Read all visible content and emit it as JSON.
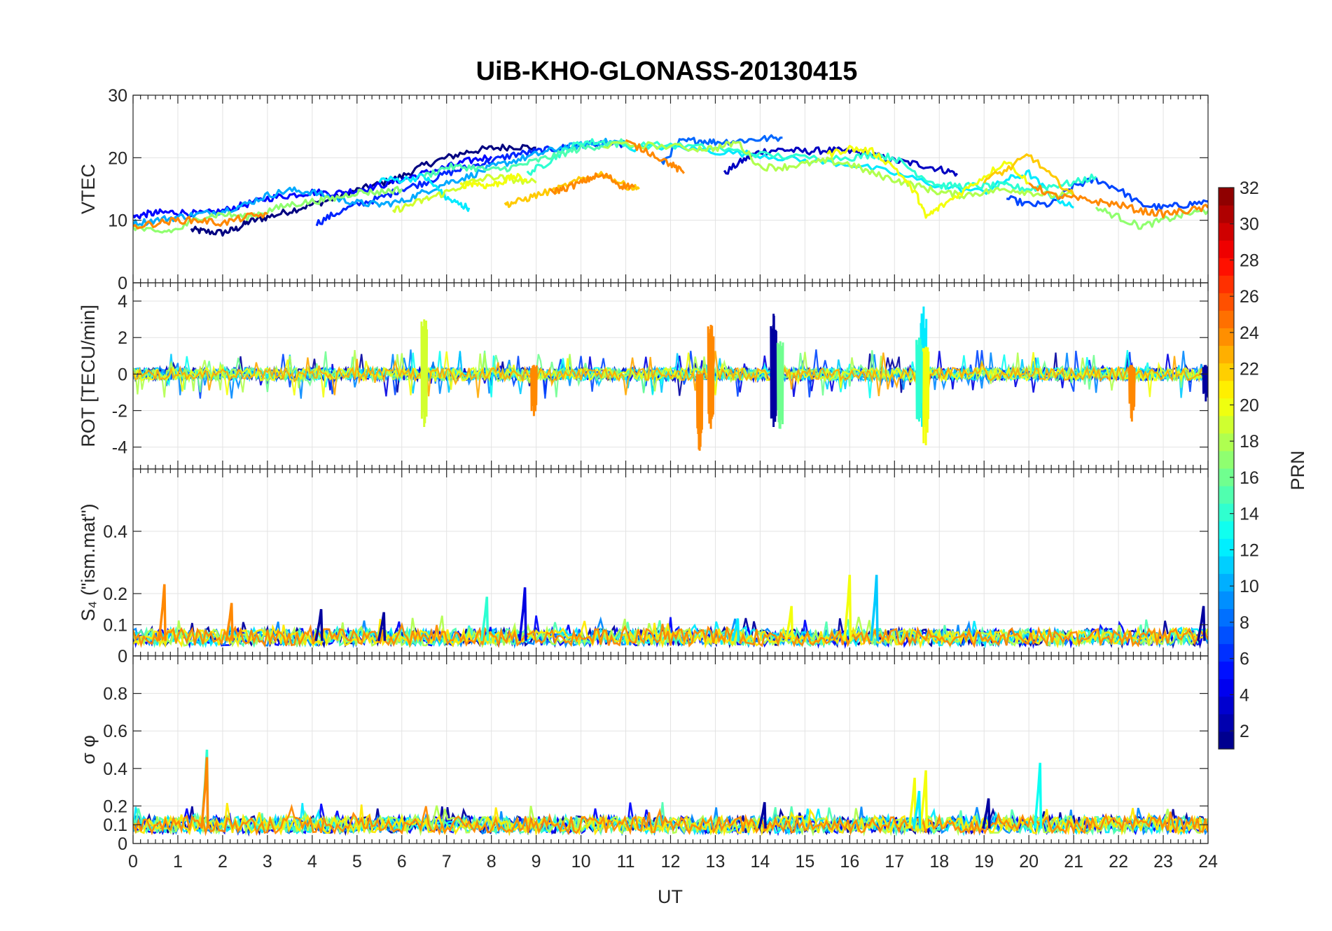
{
  "chart_data": {
    "type": "line",
    "title": "UiB-KHO-GLONASS-20130415",
    "xlabel": "UT",
    "xlim": [
      0,
      24
    ],
    "xticks": [
      "0",
      "1",
      "2",
      "3",
      "4",
      "5",
      "6",
      "7",
      "8",
      "9",
      "10",
      "11",
      "12",
      "13",
      "14",
      "15",
      "16",
      "17",
      "18",
      "19",
      "20",
      "21",
      "22",
      "23",
      "24"
    ],
    "grid": "on",
    "panels": [
      {
        "id": "vtec",
        "ylabel": "VTEC",
        "ylim": [
          0,
          30
        ],
        "yticks": [
          "0",
          "10",
          "20",
          "30"
        ],
        "tick_values": [
          0,
          10,
          20,
          30
        ],
        "kind": "level",
        "series": [
          {
            "prn": 1,
            "x": [
              1.3,
              1.6,
              2.0,
              2.3,
              2.6,
              3.0,
              3.5,
              4.0,
              4.5,
              5.0,
              5.5,
              6.0,
              6.5,
              7.0,
              7.5,
              8.0,
              8.5,
              9.0
            ],
            "y": [
              8.5,
              8.2,
              8.0,
              8.6,
              9.8,
              10.5,
              11.5,
              12.5,
              13.5,
              14.8,
              15.8,
              17.0,
              18.8,
              20.0,
              21.0,
              21.5,
              21.8,
              21.6
            ]
          },
          {
            "prn": 3,
            "x": [
              13.2,
              13.6,
              14.0,
              14.5,
              15.0,
              15.5,
              16.0,
              16.5,
              17.0,
              17.5,
              18.0,
              18.4
            ],
            "y": [
              17.5,
              19.5,
              21.0,
              21.3,
              21.0,
              21.2,
              21.0,
              20.5,
              19.5,
              19.0,
              18.2,
              17.5
            ]
          },
          {
            "prn": 5,
            "x": [
              0.0,
              0.3,
              0.6,
              1.0,
              1.5,
              2.0,
              2.5,
              3.0,
              3.5,
              4.0,
              4.5,
              5.0,
              5.5,
              6.0,
              6.5,
              7.0,
              7.5,
              8.0
            ],
            "y": [
              10.5,
              11.0,
              11.2,
              11.3,
              11.0,
              11.5,
              12.5,
              13.5,
              14.0,
              14.5,
              14.3,
              14.8,
              15.5,
              16.5,
              17.5,
              18.5,
              19.5,
              20.2
            ]
          },
          {
            "prn": 6,
            "x": [
              4.1,
              4.5,
              5.0,
              5.5,
              6.0,
              6.5,
              7.0,
              7.5,
              8.0,
              8.5,
              9.0,
              9.5,
              10.0,
              10.5,
              11.0
            ],
            "y": [
              9.5,
              11.0,
              12.5,
              13.5,
              15.0,
              16.0,
              17.5,
              18.5,
              19.5,
              20.5,
              21.0,
              21.5,
              22.0,
              22.3,
              22.0
            ]
          },
          {
            "prn": 7,
            "x": [
              19.5,
              20.0,
              20.5,
              21.0,
              21.5,
              22.0,
              22.5,
              23.0,
              23.5,
              24.0
            ],
            "y": [
              13.5,
              12.5,
              12.5,
              15.5,
              16.5,
              15.0,
              12.5,
              12.0,
              12.5,
              13.0
            ]
          },
          {
            "prn": 8,
            "x": [
              11.8,
              12.2,
              12.6,
              13.0,
              13.5,
              14.0,
              14.5
            ],
            "y": [
              19.0,
              22.5,
              22.8,
              22.5,
              22.7,
              23.0,
              23.2
            ]
          },
          {
            "prn": 10,
            "x": [
              0.0,
              0.5,
              1.0,
              1.5,
              2.0,
              2.5,
              3.0,
              3.5,
              4.0,
              4.5,
              5.0,
              5.5,
              6.0,
              6.5,
              7.0,
              7.5,
              8.0,
              8.5,
              9.0,
              9.5,
              10.0,
              10.5,
              11.0
            ],
            "y": [
              9.5,
              10.0,
              10.5,
              11.0,
              11.5,
              12.5,
              14.0,
              14.8,
              14.5,
              13.5,
              12.8,
              12.5,
              13.0,
              14.5,
              16.0,
              17.0,
              18.5,
              19.5,
              20.5,
              21.5,
              22.0,
              22.5,
              22.5
            ]
          },
          {
            "prn": 12,
            "x": [
              5.5,
              6.0,
              6.5,
              6.8,
              7.0,
              7.3,
              7.5
            ],
            "y": [
              16.5,
              16.5,
              17.0,
              15.0,
              13.5,
              12.5,
              12.0
            ]
          },
          {
            "prn": 12,
            "x": [
              11.0,
              12.0,
              13.0,
              14.0,
              15.0,
              16.0,
              17.0,
              18.0,
              19.0,
              19.5,
              20.0,
              20.5,
              21.0
            ],
            "y": [
              21.5,
              21.8,
              21.0,
              20.5,
              19.5,
              19.0,
              17.5,
              15.5,
              14.5,
              16.5,
              17.5,
              14.0,
              12.0
            ]
          },
          {
            "prn": 14,
            "x": [
              8.8,
              9.2,
              9.6,
              10.0,
              10.5,
              11.0,
              12.0,
              13.0,
              14.0,
              15.0,
              16.0,
              16.5,
              17.0,
              17.5,
              18.0,
              18.5,
              19.0,
              19.5,
              20.0,
              20.5,
              21.0,
              21.5
            ],
            "y": [
              17.5,
              19.0,
              21.0,
              22.5,
              22.5,
              22.0,
              22.0,
              21.5,
              20.5,
              20.0,
              20.0,
              20.5,
              20.0,
              17.5,
              15.5,
              15.5,
              15.5,
              15.5,
              15.0,
              15.5,
              16.0,
              17.0
            ]
          },
          {
            "prn": 15,
            "x": [
              6.5,
              7.0,
              7.5,
              8.0,
              8.5,
              9.0,
              9.5,
              10.0,
              10.5,
              11.0
            ],
            "y": [
              17.0,
              18.5,
              18.5,
              18.0,
              18.5,
              19.5,
              20.5,
              21.5,
              22.0,
              22.5
            ]
          },
          {
            "prn": 17,
            "x": [
              0.0,
              0.5,
              1.0,
              1.5,
              2.0,
              2.5,
              3.0,
              3.5,
              4.0,
              4.5,
              5.0,
              5.5,
              6.0
            ],
            "y": [
              9.0,
              8.0,
              8.5,
              10.5,
              11.0,
              10.5,
              11.5,
              12.5,
              13.0,
              13.5,
              14.5,
              14.5,
              15.0
            ]
          },
          {
            "prn": 17,
            "x": [
              21.5,
              22.0,
              22.5,
              23.0,
              23.5,
              24.0
            ],
            "y": [
              12.0,
              10.5,
              9.0,
              10.0,
              11.0,
              11.5
            ]
          },
          {
            "prn": 18,
            "x": [
              10.5,
              11.5,
              12.5,
              13.0,
              13.5,
              14.0,
              14.5,
              15.0,
              15.5,
              16.0,
              16.5,
              17.0,
              17.5,
              18.0,
              18.5,
              19.0,
              19.5,
              20.0,
              20.5,
              21.0
            ],
            "y": [
              22.0,
              22.0,
              21.5,
              21.5,
              22.5,
              18.5,
              18.5,
              19.0,
              19.5,
              19.0,
              17.5,
              16.5,
              15.5,
              14.5,
              14.0,
              14.5,
              15.0,
              14.5,
              14.0,
              14.0
            ]
          },
          {
            "prn": 19,
            "x": [
              5.8,
              6.2,
              6.6,
              7.0,
              7.5,
              8.0,
              8.5,
              9.0
            ],
            "y": [
              11.5,
              12.5,
              13.5,
              14.5,
              16.0,
              17.0,
              16.5,
              16.0
            ]
          },
          {
            "prn": 20,
            "x": [
              7.3,
              7.6,
              7.9,
              8.2,
              8.5,
              8.8
            ],
            "y": [
              15.5,
              16.0,
              15.5,
              16.0,
              17.0,
              16.5
            ]
          },
          {
            "prn": 20,
            "x": [
              15.5,
              16.0,
              16.5,
              17.0,
              17.5,
              17.7,
              18.0,
              18.5,
              19.0,
              19.5,
              20.0
            ],
            "y": [
              20.5,
              21.5,
              21.0,
              18.5,
              14.0,
              10.5,
              12.0,
              14.5,
              17.0,
              19.5,
              16.0
            ]
          },
          {
            "prn": 22,
            "x": [
              8.3,
              8.6,
              9.0,
              9.5,
              10.0,
              10.5,
              11.0,
              11.3
            ],
            "y": [
              12.5,
              13.0,
              14.0,
              15.0,
              16.5,
              17.5,
              15.5,
              15.0
            ]
          },
          {
            "prn": 22,
            "x": [
              19.0,
              19.5,
              20.0,
              20.5,
              21.0
            ],
            "y": [
              16.5,
              18.0,
              20.5,
              17.0,
              14.0
            ]
          },
          {
            "prn": 24,
            "x": [
              0.0,
              0.5,
              1.0,
              1.5,
              2.0,
              2.5,
              3.0
            ],
            "y": [
              9.0,
              9.5,
              10.0,
              10.0,
              9.5,
              10.5,
              11.0
            ]
          },
          {
            "prn": 24,
            "x": [
              9.3,
              9.6,
              10.0,
              10.3,
              10.6,
              10.9,
              11.2
            ],
            "y": [
              14.5,
              15.0,
              16.0,
              17.0,
              17.0,
              15.5,
              15.5
            ]
          },
          {
            "prn": 24,
            "x": [
              11.0,
              11.5,
              12.0,
              12.3
            ],
            "y": [
              22.5,
              21.0,
              19.0,
              17.5
            ]
          },
          {
            "prn": 24,
            "x": [
              20.0,
              20.5,
              21.0,
              21.5,
              22.0,
              22.5,
              23.0,
              23.5,
              24.0
            ],
            "y": [
              16.0,
              14.0,
              13.5,
              13.0,
              12.5,
              11.5,
              11.0,
              11.5,
              12.0
            ]
          }
        ]
      },
      {
        "id": "rot",
        "ylabel": "ROT [TECU/min]",
        "ylim": [
          -5.2,
          5
        ],
        "yticks": [
          "-4",
          "-2",
          "0",
          "2",
          "4"
        ],
        "tick_values": [
          -4,
          -2,
          0,
          2,
          4
        ],
        "kind": "noise",
        "bursts": [
          {
            "x": 6.5,
            "up": 3.0,
            "down": -2.9,
            "prn": 19
          },
          {
            "x": 12.65,
            "up": 0.0,
            "down": -4.2,
            "prn": 24
          },
          {
            "x": 12.9,
            "up": 2.7,
            "down": -3.0,
            "prn": 24
          },
          {
            "x": 14.3,
            "up": 3.3,
            "down": -2.9,
            "prn": 2
          },
          {
            "x": 14.45,
            "up": 1.8,
            "down": -3.0,
            "prn": 16
          },
          {
            "x": 17.65,
            "up": 3.7,
            "down": -2.9,
            "prn": 12
          },
          {
            "x": 17.7,
            "up": 1.5,
            "down": -3.9,
            "prn": 20
          },
          {
            "x": 22.3,
            "up": 0.5,
            "down": -2.6,
            "prn": 24
          },
          {
            "x": 8.95,
            "up": 0.5,
            "down": -2.3,
            "prn": 24
          },
          {
            "x": 17.55,
            "up": 2.0,
            "down": -2.6,
            "prn": 14
          },
          {
            "x": 23.95,
            "up": 0.5,
            "down": -1.5,
            "prn": 2
          }
        ]
      },
      {
        "id": "s4",
        "ylabel": "S₄ (\"ism.mat\")",
        "ylim": [
          0,
          0.6
        ],
        "yticks": [
          "0",
          "0.1",
          "0.2",
          "0.4"
        ],
        "tick_values": [
          0,
          0.1,
          0.2,
          0.4
        ],
        "kind": "floor",
        "floor": 0.06,
        "spikes": [
          {
            "x": 0.7,
            "peak": 0.23,
            "prn": 24
          },
          {
            "x": 2.2,
            "peak": 0.17,
            "prn": 24
          },
          {
            "x": 7.9,
            "peak": 0.19,
            "prn": 14
          },
          {
            "x": 8.75,
            "peak": 0.22,
            "prn": 4
          },
          {
            "x": 16.0,
            "peak": 0.26,
            "prn": 20
          },
          {
            "x": 16.6,
            "peak": 0.26,
            "prn": 11
          },
          {
            "x": 14.7,
            "peak": 0.16,
            "prn": 20
          },
          {
            "x": 23.9,
            "peak": 0.16,
            "prn": 2
          },
          {
            "x": 4.2,
            "peak": 0.15,
            "prn": 2
          },
          {
            "x": 5.6,
            "peak": 0.14,
            "prn": 2
          },
          {
            "x": 13.5,
            "peak": 0.12,
            "prn": 12
          }
        ]
      },
      {
        "id": "sigma",
        "ylabel": "σ φ",
        "ylim": [
          0,
          1
        ],
        "yticks": [
          "0",
          "0.1",
          "0.2",
          "0.4",
          "0.6",
          "0.8"
        ],
        "tick_values": [
          0,
          0.1,
          0.2,
          0.4,
          0.6,
          0.8
        ],
        "kind": "floor",
        "floor": 0.1,
        "spikes": [
          {
            "x": 1.65,
            "peak": 0.5,
            "prn": 14
          },
          {
            "x": 1.65,
            "peak": 0.46,
            "prn": 24
          },
          {
            "x": 17.45,
            "peak": 0.35,
            "prn": 20
          },
          {
            "x": 17.7,
            "peak": 0.39,
            "prn": 20
          },
          {
            "x": 20.25,
            "peak": 0.43,
            "prn": 13
          },
          {
            "x": 17.55,
            "peak": 0.28,
            "prn": 12
          },
          {
            "x": 14.1,
            "peak": 0.22,
            "prn": 2
          },
          {
            "x": 19.1,
            "peak": 0.24,
            "prn": 2
          }
        ]
      }
    ],
    "colorbar": {
      "label": "PRN",
      "clim": [
        1,
        32
      ],
      "ticks": [
        "2",
        "4",
        "6",
        "8",
        "10",
        "12",
        "14",
        "16",
        "18",
        "20",
        "22",
        "24",
        "26",
        "28",
        "30",
        "32"
      ],
      "tick_values": [
        2,
        4,
        6,
        8,
        10,
        12,
        14,
        16,
        18,
        20,
        22,
        24,
        26,
        28,
        30,
        32
      ],
      "colormap": "jet"
    }
  }
}
